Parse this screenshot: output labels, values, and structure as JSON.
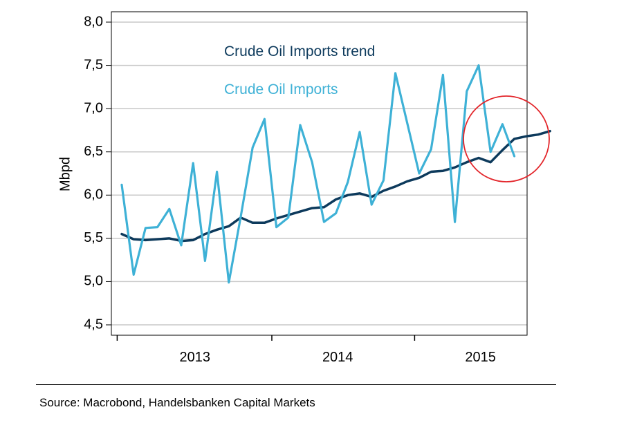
{
  "colors": {
    "trend": "#0d3a5c",
    "imports": "#3eb1d6",
    "grid": "#c8c8c8",
    "circle": "#e3262b"
  },
  "chart_data": {
    "type": "line",
    "ylabel": "Mbpd",
    "ylim": [
      4.5,
      8.0
    ],
    "yticks": [
      "4,5",
      "5,0",
      "5,5",
      "6,0",
      "6,5",
      "7,0",
      "7,5",
      "8,0"
    ],
    "yticks_values": [
      4.5,
      5.0,
      5.5,
      6.0,
      6.5,
      7.0,
      7.5,
      8.0
    ],
    "x_tick_labels": [
      "2013",
      "2014",
      "2015"
    ],
    "grid": "horizontal",
    "legend_placement": "top-center",
    "x_start": "2012-12",
    "series": [
      {
        "name": "Crude Oil Imports trend",
        "color": "#0d3a5c",
        "values": [
          5.55,
          5.49,
          5.48,
          5.49,
          5.5,
          5.47,
          5.48,
          5.55,
          5.6,
          5.64,
          5.74,
          5.68,
          5.68,
          5.73,
          5.77,
          5.81,
          5.85,
          5.86,
          5.95,
          6.0,
          6.02,
          5.98,
          6.05,
          6.1,
          6.16,
          6.2,
          6.27,
          6.28,
          6.32,
          6.38,
          6.43,
          6.38,
          6.52,
          6.65,
          6.68,
          6.7,
          6.74
        ]
      },
      {
        "name": "Crude Oil Imports",
        "color": "#3eb1d6",
        "values": [
          6.12,
          5.08,
          5.62,
          5.63,
          5.84,
          5.42,
          6.37,
          5.24,
          6.27,
          4.99,
          5.75,
          6.55,
          6.88,
          5.63,
          5.74,
          6.81,
          6.38,
          5.69,
          5.79,
          6.15,
          6.73,
          5.89,
          6.17,
          7.41,
          6.83,
          6.25,
          6.53,
          7.39,
          5.69,
          7.2,
          7.5,
          6.5,
          6.82,
          6.45
        ]
      }
    ],
    "annotations": [
      {
        "type": "circle",
        "color": "#e3262b",
        "highlight": "2015 most recent values"
      }
    ]
  },
  "source": "Source: Macrobond, Handelsbanken Capital Markets"
}
